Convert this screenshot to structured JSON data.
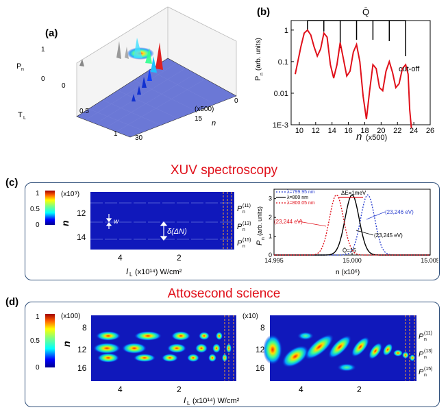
{
  "panels": {
    "a": {
      "label": "(a)",
      "z_axis": {
        "label": "P",
        "sub": "n",
        "ticks": [
          "1",
          "0"
        ]
      },
      "y_axis": {
        "label": "T",
        "sub": "L",
        "ticks": [
          "0",
          "0.5",
          "1"
        ]
      },
      "x_axis": {
        "label": "n",
        "unit": "(x500)",
        "ticks": [
          "0",
          "15",
          "30"
        ]
      }
    },
    "b": {
      "label": "(b)",
      "qbar_label": "Q̄",
      "cutoff_label": "cut-off",
      "chart_data": {
        "type": "line",
        "xlabel": "n",
        "xunit": "(x500)",
        "ylabel": "P",
        "ylabel_sub": "n",
        "ylabel_unit": "(arb. units)",
        "xlim": [
          9,
          26
        ],
        "ylim_log": [
          0.001,
          2
        ],
        "xticks": [
          "10",
          "12",
          "14",
          "16",
          "18",
          "20",
          "22",
          "24",
          "26"
        ],
        "yticks": [
          "1",
          "0.1",
          "0.01",
          "1E-3"
        ],
        "color": "#e0101a",
        "x": [
          9.5,
          10.2,
          10.6,
          11,
          11.4,
          11.8,
          12.2,
          12.6,
          13,
          13.4,
          13.8,
          14.2,
          14.6,
          15,
          15.4,
          15.8,
          16.2,
          16.6,
          17,
          17.4,
          17.8,
          18.2,
          18.6,
          19,
          19.4,
          19.8,
          20.2,
          20.6,
          21,
          21.4,
          21.8,
          22.2,
          22.6,
          23,
          23.3,
          23.5,
          23.7
        ],
        "y": [
          0.04,
          0.3,
          0.8,
          1.0,
          0.7,
          0.3,
          0.15,
          0.25,
          0.8,
          0.6,
          0.08,
          0.03,
          0.08,
          0.4,
          0.12,
          0.035,
          0.05,
          0.2,
          0.35,
          0.1,
          0.008,
          0.0015,
          0.012,
          0.08,
          0.06,
          0.015,
          0.012,
          0.05,
          0.1,
          0.045,
          0.015,
          0.02,
          0.06,
          0.08,
          0.04,
          0.003,
          0.0008
        ]
      }
    },
    "c": {
      "label": "(c)",
      "title": "XUV spectroscopy",
      "colorbar_ticks": [
        "1",
        "0.5",
        "0"
      ],
      "heatmap": {
        "unit": "(x10⁹)",
        "ylabel": "n",
        "yticks": [
          "12",
          "14"
        ],
        "xticks": [
          "4",
          "2"
        ],
        "w_label": "w",
        "delta_label": "δ(ΔN)",
        "right_labels": [
          "P",
          "P",
          "P"
        ],
        "right_sups": [
          "(11)",
          "(13)",
          "(15)"
        ],
        "right_subs": [
          "n",
          "n",
          "n"
        ]
      },
      "spectrum": {
        "ylabel": "P",
        "ylabel_sub": "n",
        "ylabel_unit": "(arb. units)",
        "xlabel": "n (x10⁶)",
        "xticks": [
          "14.995",
          "15.000",
          "15.005"
        ],
        "yticks": [
          "3",
          "2",
          "1",
          "0"
        ],
        "legend": [
          {
            "label": "λ=799.95 nm",
            "color": "#2a3fcf"
          },
          {
            "label": "λ=800 nm",
            "color": "#000000"
          },
          {
            "label": "λ=800.05 nm",
            "color": "#e0101a"
          }
        ],
        "delta_e": "ΔE=1meV",
        "annot_left": "(23,244 eV)",
        "annot_mid": "(23,245 eV)",
        "annot_right": "(23,246 eV)",
        "qbar": "Q̄=15",
        "chart_data": {
          "type": "line",
          "xlim": [
            14.995,
            15.005
          ],
          "ylim": [
            0,
            3.5
          ],
          "series": [
            {
              "name": "λ=799.95 nm",
              "center": 15.001,
              "peak": 3.2,
              "width": 0.00045
            },
            {
              "name": "λ=800 nm",
              "center": 15.0,
              "peak": 3.2,
              "width": 0.00045
            },
            {
              "name": "λ=800.05 nm",
              "center": 14.999,
              "peak": 3.2,
              "width": 0.00045
            }
          ]
        }
      },
      "xlabel": "I",
      "xlabel_sub": "L",
      "xlabel_unit": "(x10¹⁴) W/cm²"
    },
    "d": {
      "label": "(d)",
      "title": "Attosecond science",
      "colorbar_ticks": [
        "1",
        "0.5",
        "0"
      ],
      "left": {
        "unit": "(x100)",
        "ylabel": "n",
        "yticks": [
          "8",
          "12",
          "16"
        ],
        "xticks": [
          "4",
          "2"
        ]
      },
      "right": {
        "unit": "(x10)",
        "yticks": [
          "8",
          "12",
          "16"
        ],
        "xticks": [
          "4",
          "2"
        ],
        "right_labels": [
          "P",
          "P",
          "P"
        ],
        "right_sups": [
          "(11)",
          "(13)",
          "(15)"
        ],
        "right_subs": [
          "n",
          "n",
          "n"
        ]
      },
      "xlabel": "I",
      "xlabel_sub": "L",
      "xlabel_unit": "(x10¹⁴) W/cm²"
    }
  }
}
